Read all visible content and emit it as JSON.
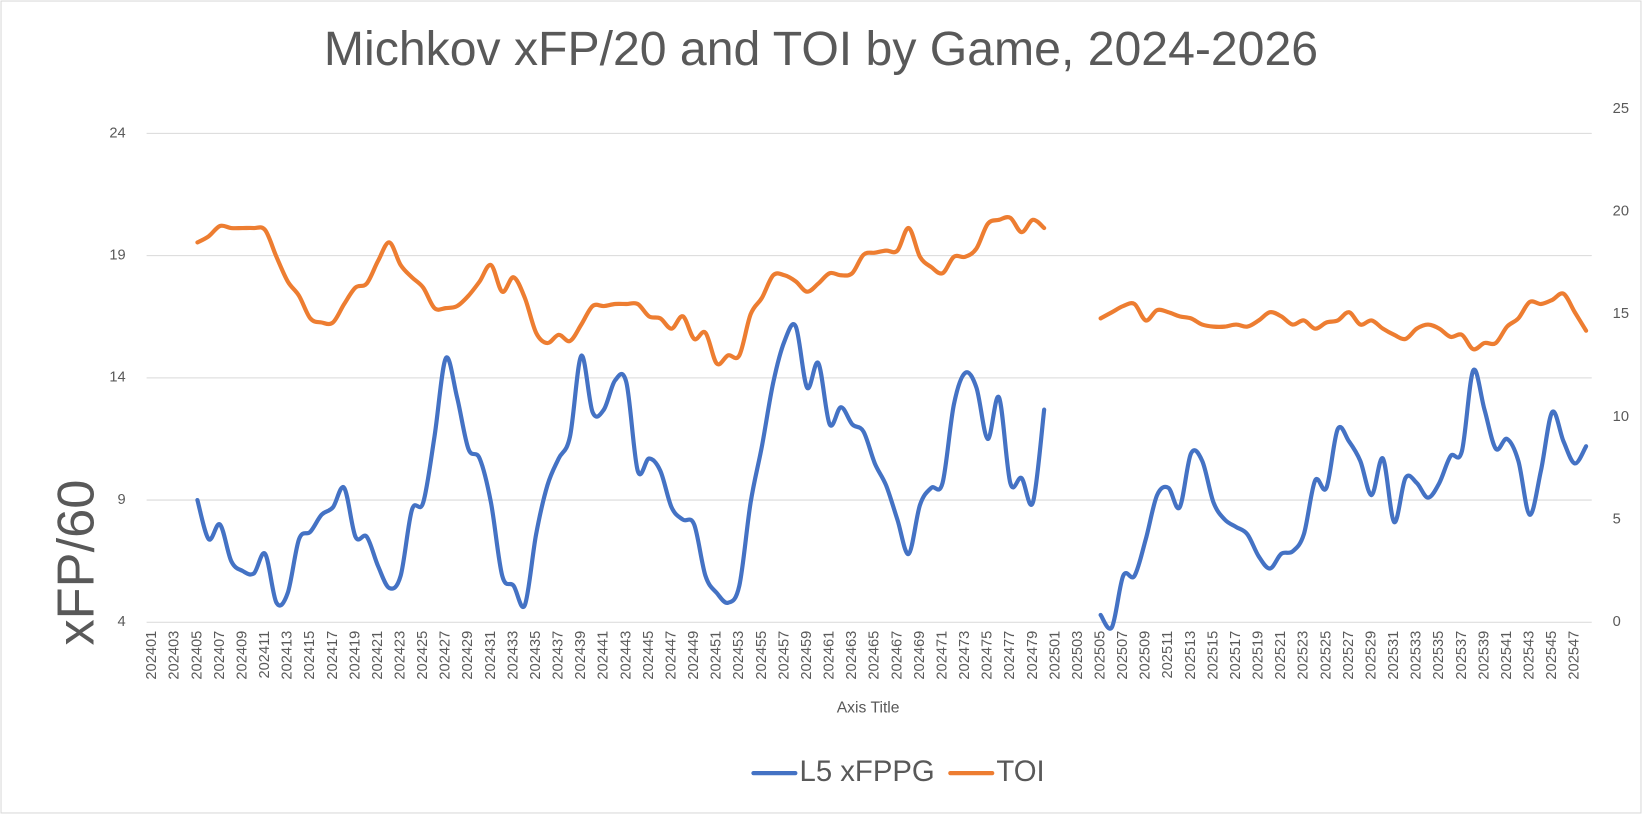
{
  "chart_data": {
    "type": "line",
    "title": "Michkov xFP/20 and TOI by Game, 2024-2026",
    "y_label": "xFP/60",
    "x_label": "Axis Title",
    "categories": [
      "202401",
      null,
      "202403",
      null,
      "202405",
      null,
      "202407",
      null,
      "202409",
      null,
      "202411",
      null,
      "202413",
      null,
      "202415",
      null,
      "202417",
      null,
      "202419",
      null,
      "202421",
      null,
      "202423",
      null,
      "202425",
      null,
      "202427",
      null,
      "202429",
      null,
      "202431",
      null,
      "202433",
      null,
      "202435",
      null,
      "202437",
      null,
      "202439",
      null,
      "202441",
      null,
      "202443",
      null,
      "202445",
      null,
      "202447",
      null,
      "202449",
      null,
      "202451",
      null,
      "202453",
      null,
      "202455",
      null,
      "202457",
      null,
      "202459",
      null,
      "202461",
      null,
      "202463",
      null,
      "202465",
      null,
      "202467",
      null,
      "202469",
      null,
      "202471",
      null,
      "202473",
      null,
      "202475",
      null,
      "202477",
      null,
      "202479",
      null,
      "202501",
      null,
      "202503",
      null,
      "202505",
      null,
      "202507",
      null,
      "202509",
      null,
      "202511",
      null,
      "202513",
      null,
      "202515",
      null,
      "202517",
      null,
      "202519",
      null,
      "202521",
      null,
      "202523",
      null,
      "202525",
      null,
      "202527",
      null,
      "202529",
      null,
      "202531",
      null,
      "202533",
      null,
      "202535",
      null,
      "202537",
      null,
      "202539",
      null,
      "202541",
      null,
      "202543",
      null,
      "202545",
      null,
      "202547",
      null
    ],
    "series": [
      {
        "name": "L5 xFPPG",
        "color": "#4472c4",
        "axis": "y",
        "values": [
          null,
          null,
          null,
          null,
          9.0,
          7.4,
          8.0,
          6.5,
          6.1,
          6.0,
          6.8,
          4.8,
          5.2,
          7.4,
          7.7,
          8.4,
          8.7,
          9.5,
          7.5,
          7.5,
          6.3,
          5.4,
          5.9,
          8.6,
          8.9,
          11.6,
          14.8,
          13.2,
          11.1,
          10.7,
          8.9,
          5.9,
          5.5,
          4.7,
          7.6,
          9.6,
          10.7,
          11.6,
          14.9,
          12.6,
          12.7,
          13.9,
          13.8,
          10.2,
          10.7,
          10.2,
          8.7,
          8.2,
          8.0,
          5.9,
          5.2,
          4.8,
          5.5,
          8.9,
          11.2,
          13.8,
          15.5,
          16.1,
          13.6,
          14.6,
          12.1,
          12.8,
          12.1,
          11.8,
          10.5,
          9.6,
          8.2,
          6.8,
          8.8,
          9.5,
          9.7,
          12.9,
          14.2,
          13.6,
          11.5,
          13.2,
          9.7,
          9.9,
          8.9,
          12.7,
          null,
          null,
          null,
          null,
          4.3,
          3.8,
          5.9,
          5.9,
          7.4,
          9.2,
          9.5,
          8.7,
          10.9,
          10.6,
          8.9,
          8.2,
          7.9,
          7.6,
          6.7,
          6.2,
          6.8,
          6.9,
          7.6,
          9.8,
          9.5,
          11.9,
          11.4,
          10.6,
          9.2,
          10.7,
          8.1,
          9.9,
          9.7,
          9.1,
          9.7,
          10.8,
          11.0,
          14.3,
          12.7,
          11.1,
          11.5,
          10.6,
          8.4,
          10.2,
          12.6,
          11.4,
          10.5,
          11.2
        ]
      },
      {
        "name": "TOI",
        "color": "#ed7d31",
        "axis": "y2",
        "values": [
          null,
          null,
          null,
          null,
          18.5,
          18.8,
          19.3,
          19.2,
          19.2,
          19.2,
          19.1,
          17.8,
          16.6,
          15.9,
          14.8,
          14.6,
          14.6,
          15.5,
          16.3,
          16.5,
          17.6,
          18.5,
          17.4,
          16.8,
          16.3,
          15.3,
          15.3,
          15.4,
          15.9,
          16.6,
          17.4,
          16.1,
          16.8,
          15.8,
          14.1,
          13.6,
          14.0,
          13.7,
          14.5,
          15.4,
          15.4,
          15.5,
          15.5,
          15.5,
          14.9,
          14.8,
          14.3,
          14.9,
          13.8,
          14.1,
          12.6,
          13.0,
          13.0,
          15.0,
          15.8,
          16.9,
          16.9,
          16.6,
          16.1,
          16.5,
          17.0,
          16.9,
          17.0,
          17.9,
          18.0,
          18.1,
          18.1,
          19.2,
          17.8,
          17.3,
          17.0,
          17.8,
          17.8,
          18.2,
          19.4,
          19.6,
          19.7,
          19.0,
          19.6,
          19.2,
          null,
          null,
          null,
          null,
          14.8,
          15.1,
          15.4,
          15.5,
          14.7,
          15.2,
          15.1,
          14.9,
          14.8,
          14.5,
          14.4,
          14.4,
          14.5,
          14.4,
          14.7,
          15.1,
          14.9,
          14.5,
          14.7,
          14.3,
          14.6,
          14.7,
          15.1,
          14.5,
          14.7,
          14.3,
          14.0,
          13.8,
          14.3,
          14.5,
          14.3,
          13.9,
          14.0,
          13.3,
          13.6,
          13.6,
          14.4,
          14.8,
          15.6,
          15.5,
          15.7,
          16.0,
          15.1,
          14.2
        ]
      }
    ],
    "ylim": [
      4,
      25
    ],
    "yticks": [
      4,
      9,
      14,
      19,
      24
    ],
    "y2lim": [
      0,
      25
    ],
    "y2ticks": [
      0,
      5,
      10,
      15,
      20,
      25
    ],
    "grid": true,
    "legend": "bottom"
  }
}
